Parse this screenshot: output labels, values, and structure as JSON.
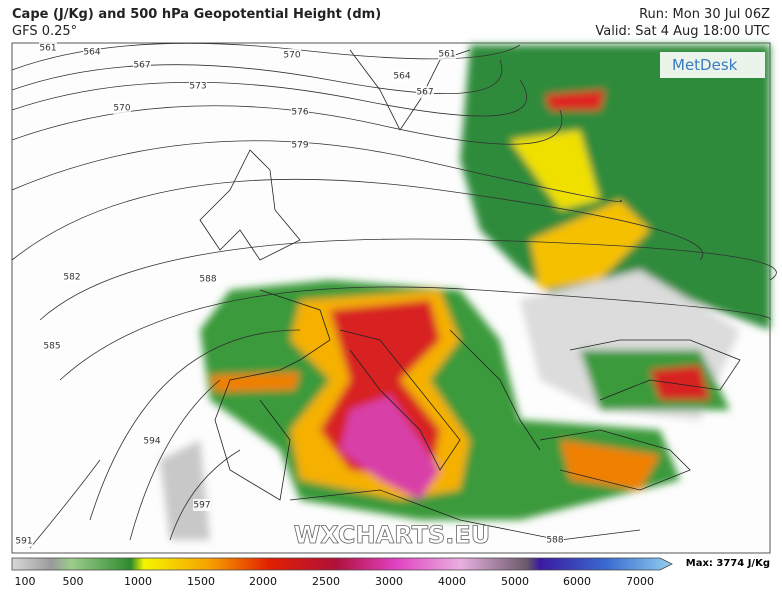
{
  "header": {
    "title": "Cape (J/Kg) and 500 hPa Geopotential Height (dm)",
    "model": "GFS 0.25°",
    "run": "Run: Mon 30 Jul 06Z",
    "valid": "Valid: Sat 4 Aug 18:00 UTC"
  },
  "logo": "MetDesk",
  "watermark": "WXCHARTS.EU",
  "contour_labels": [
    "561",
    "564",
    "567",
    "570",
    "573",
    "576",
    "579",
    "564",
    "567",
    "570",
    "561",
    "582",
    "585",
    "588",
    "591",
    "594",
    "597",
    "588"
  ],
  "colorbar": {
    "ticks": [
      "100",
      "500",
      "1000",
      "1500",
      "2000",
      "2500",
      "3000",
      "4000",
      "5000",
      "6000",
      "7000"
    ],
    "max": "Max: 3774 J/Kg"
  }
}
